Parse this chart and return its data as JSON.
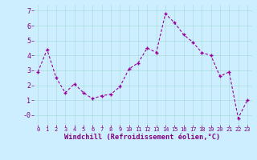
{
  "x": [
    0,
    1,
    2,
    3,
    4,
    5,
    6,
    7,
    8,
    9,
    10,
    11,
    12,
    13,
    14,
    15,
    16,
    17,
    18,
    19,
    20,
    21,
    22,
    23
  ],
  "y": [
    2.9,
    4.4,
    2.5,
    1.5,
    2.1,
    1.5,
    1.1,
    1.3,
    1.4,
    1.9,
    3.1,
    3.5,
    4.5,
    4.2,
    6.8,
    6.2,
    5.4,
    4.9,
    4.2,
    4.0,
    2.6,
    2.9,
    -0.2,
    1.0
  ],
  "line_color": "#990099",
  "marker": "P",
  "marker_size": 3,
  "bg_color": "#cceeff",
  "grid_color": "#aadddd",
  "xlabel": "Windchill (Refroidissement éolien,°C)",
  "xlabel_color": "#800080",
  "tick_color": "#800080",
  "yticks": [
    0,
    1,
    2,
    3,
    4,
    5,
    6,
    7
  ],
  "ytick_labels": [
    "-0",
    "1",
    "2",
    "3",
    "4",
    "5",
    "6",
    "7"
  ],
  "xlim": [
    -0.5,
    23.5
  ],
  "ylim": [
    -0.65,
    7.4
  ],
  "xtick_fontsize": 5.0,
  "ytick_fontsize": 6.0,
  "xlabel_fontsize": 6.2,
  "line_width": 0.8,
  "dash_pattern": [
    3,
    2
  ]
}
